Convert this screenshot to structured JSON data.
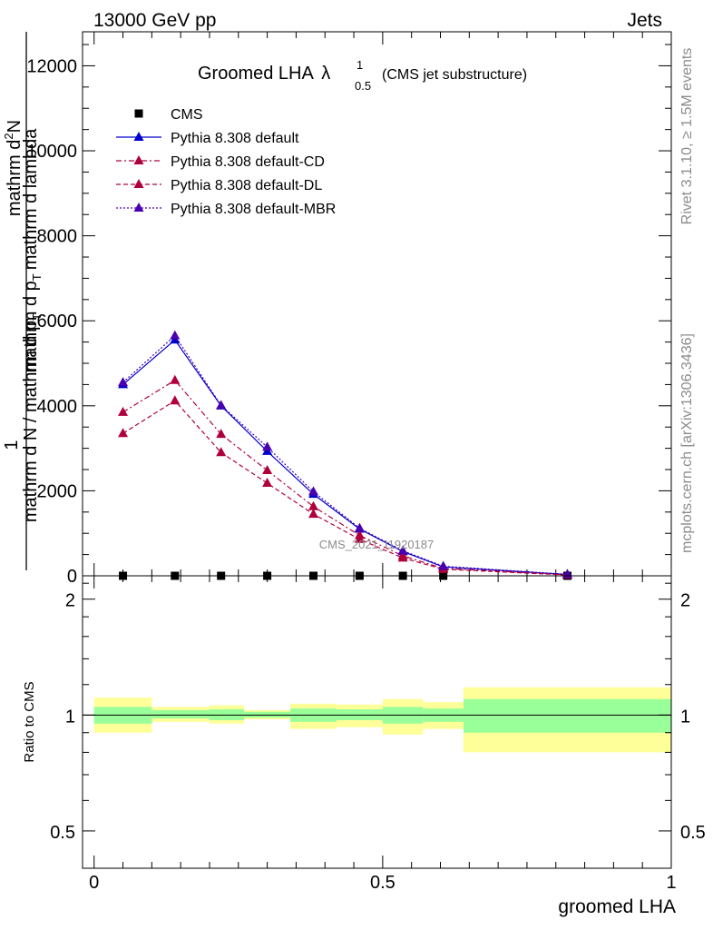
{
  "header": {
    "left": "13000 GeV pp",
    "right": "Jets",
    "side_top": "Rivet 3.1.10, ≥ 1.5M events",
    "side_bottom": "mcplots.cern.ch [arXiv:1306.3436]",
    "watermark": "CMS_2021_I1920187"
  },
  "chart_data": [
    {
      "type": "line",
      "title_main": "Groomed LHA",
      "title_symbol": "λ",
      "title_sup": "1",
      "title_sub": "0.5",
      "title_suffix": "(CMS jet substructure)",
      "ylabel_parts": [
        "1",
        "mathrm d N / mathrm d p",
        "T",
        "mathrm d p",
        "T",
        "mathrm d lambda",
        "mathrm d",
        "2",
        "N"
      ],
      "ylim": [
        0,
        12800
      ],
      "yticks": [
        0,
        2000,
        4000,
        6000,
        8000,
        10000,
        12000
      ],
      "ytick_labels": [
        "0",
        "2000",
        "4000",
        "6000",
        "8000",
        "10000",
        "12000"
      ],
      "xlim": [
        -0.02,
        1.0
      ],
      "x_bins": [
        [
          0.0,
          0.1
        ],
        [
          0.1,
          0.2
        ],
        [
          0.2,
          0.26
        ],
        [
          0.26,
          0.34
        ],
        [
          0.34,
          0.42
        ],
        [
          0.42,
          0.5
        ],
        [
          0.5,
          0.57
        ],
        [
          0.57,
          0.64
        ],
        [
          0.64,
          1.0
        ]
      ],
      "x": [
        0.05,
        0.14,
        0.22,
        0.3,
        0.38,
        0.46,
        0.535,
        0.605,
        0.82
      ],
      "series": [
        {
          "name": "CMS",
          "color": "#000000",
          "marker": "square",
          "dash": "none",
          "values": [
            0,
            0,
            0,
            0,
            0,
            0,
            0,
            0,
            0
          ]
        },
        {
          "name": "Pythia 8.308 default",
          "color": "#0000cc",
          "marker": "triangle",
          "dash": "solid",
          "values": [
            4500,
            5550,
            4000,
            2930,
            1920,
            1100,
            570,
            210,
            30
          ]
        },
        {
          "name": "Pythia 8.308 default-CD",
          "color": "#b0003a",
          "marker": "triangle",
          "dash": "6,3,2,3",
          "values": [
            3850,
            4600,
            3330,
            2480,
            1630,
            950,
            470,
            175,
            25
          ]
        },
        {
          "name": "Pythia 8.308 default-DL",
          "color": "#b0003a",
          "marker": "triangle",
          "dash": "5,3",
          "values": [
            3350,
            4120,
            2900,
            2180,
            1450,
            860,
            420,
            155,
            20
          ]
        },
        {
          "name": "Pythia 8.308 default-MBR",
          "color": "#4a00b0",
          "marker": "triangle",
          "dash": "2,2",
          "values": [
            4550,
            5650,
            4010,
            3030,
            1980,
            1120,
            590,
            225,
            35
          ]
        }
      ]
    },
    {
      "type": "area",
      "ylabel": "Ratio to CMS",
      "xlabel": "groomed LHA",
      "ylim": [
        0.4,
        2.3
      ],
      "scale": "log",
      "yticks": [
        0.5,
        1,
        2
      ],
      "ytick_labels": [
        "0.5",
        "1",
        "2"
      ],
      "xticks": [
        0,
        0.5,
        1
      ],
      "xtick_labels": [
        "0",
        "0.5",
        "1"
      ],
      "band_colors": {
        "inner": "#99ff99",
        "outer": "#ffff99"
      },
      "bins": [
        [
          0.0,
          0.1
        ],
        [
          0.1,
          0.2
        ],
        [
          0.2,
          0.26
        ],
        [
          0.26,
          0.34
        ],
        [
          0.34,
          0.42
        ],
        [
          0.42,
          0.5
        ],
        [
          0.5,
          0.57
        ],
        [
          0.57,
          0.64
        ],
        [
          0.64,
          1.0
        ]
      ],
      "inner_band": [
        [
          0.95,
          1.05
        ],
        [
          0.98,
          1.03
        ],
        [
          0.97,
          1.035
        ],
        [
          0.985,
          1.02
        ],
        [
          0.96,
          1.04
        ],
        [
          0.97,
          1.035
        ],
        [
          0.95,
          1.05
        ],
        [
          0.96,
          1.04
        ],
        [
          0.9,
          1.1
        ]
      ],
      "outer_band": [
        [
          0.9,
          1.11
        ],
        [
          0.96,
          1.05
        ],
        [
          0.95,
          1.06
        ],
        [
          0.975,
          1.03
        ],
        [
          0.92,
          1.07
        ],
        [
          0.93,
          1.065
        ],
        [
          0.89,
          1.1
        ],
        [
          0.92,
          1.08
        ],
        [
          0.8,
          1.18
        ]
      ]
    }
  ]
}
